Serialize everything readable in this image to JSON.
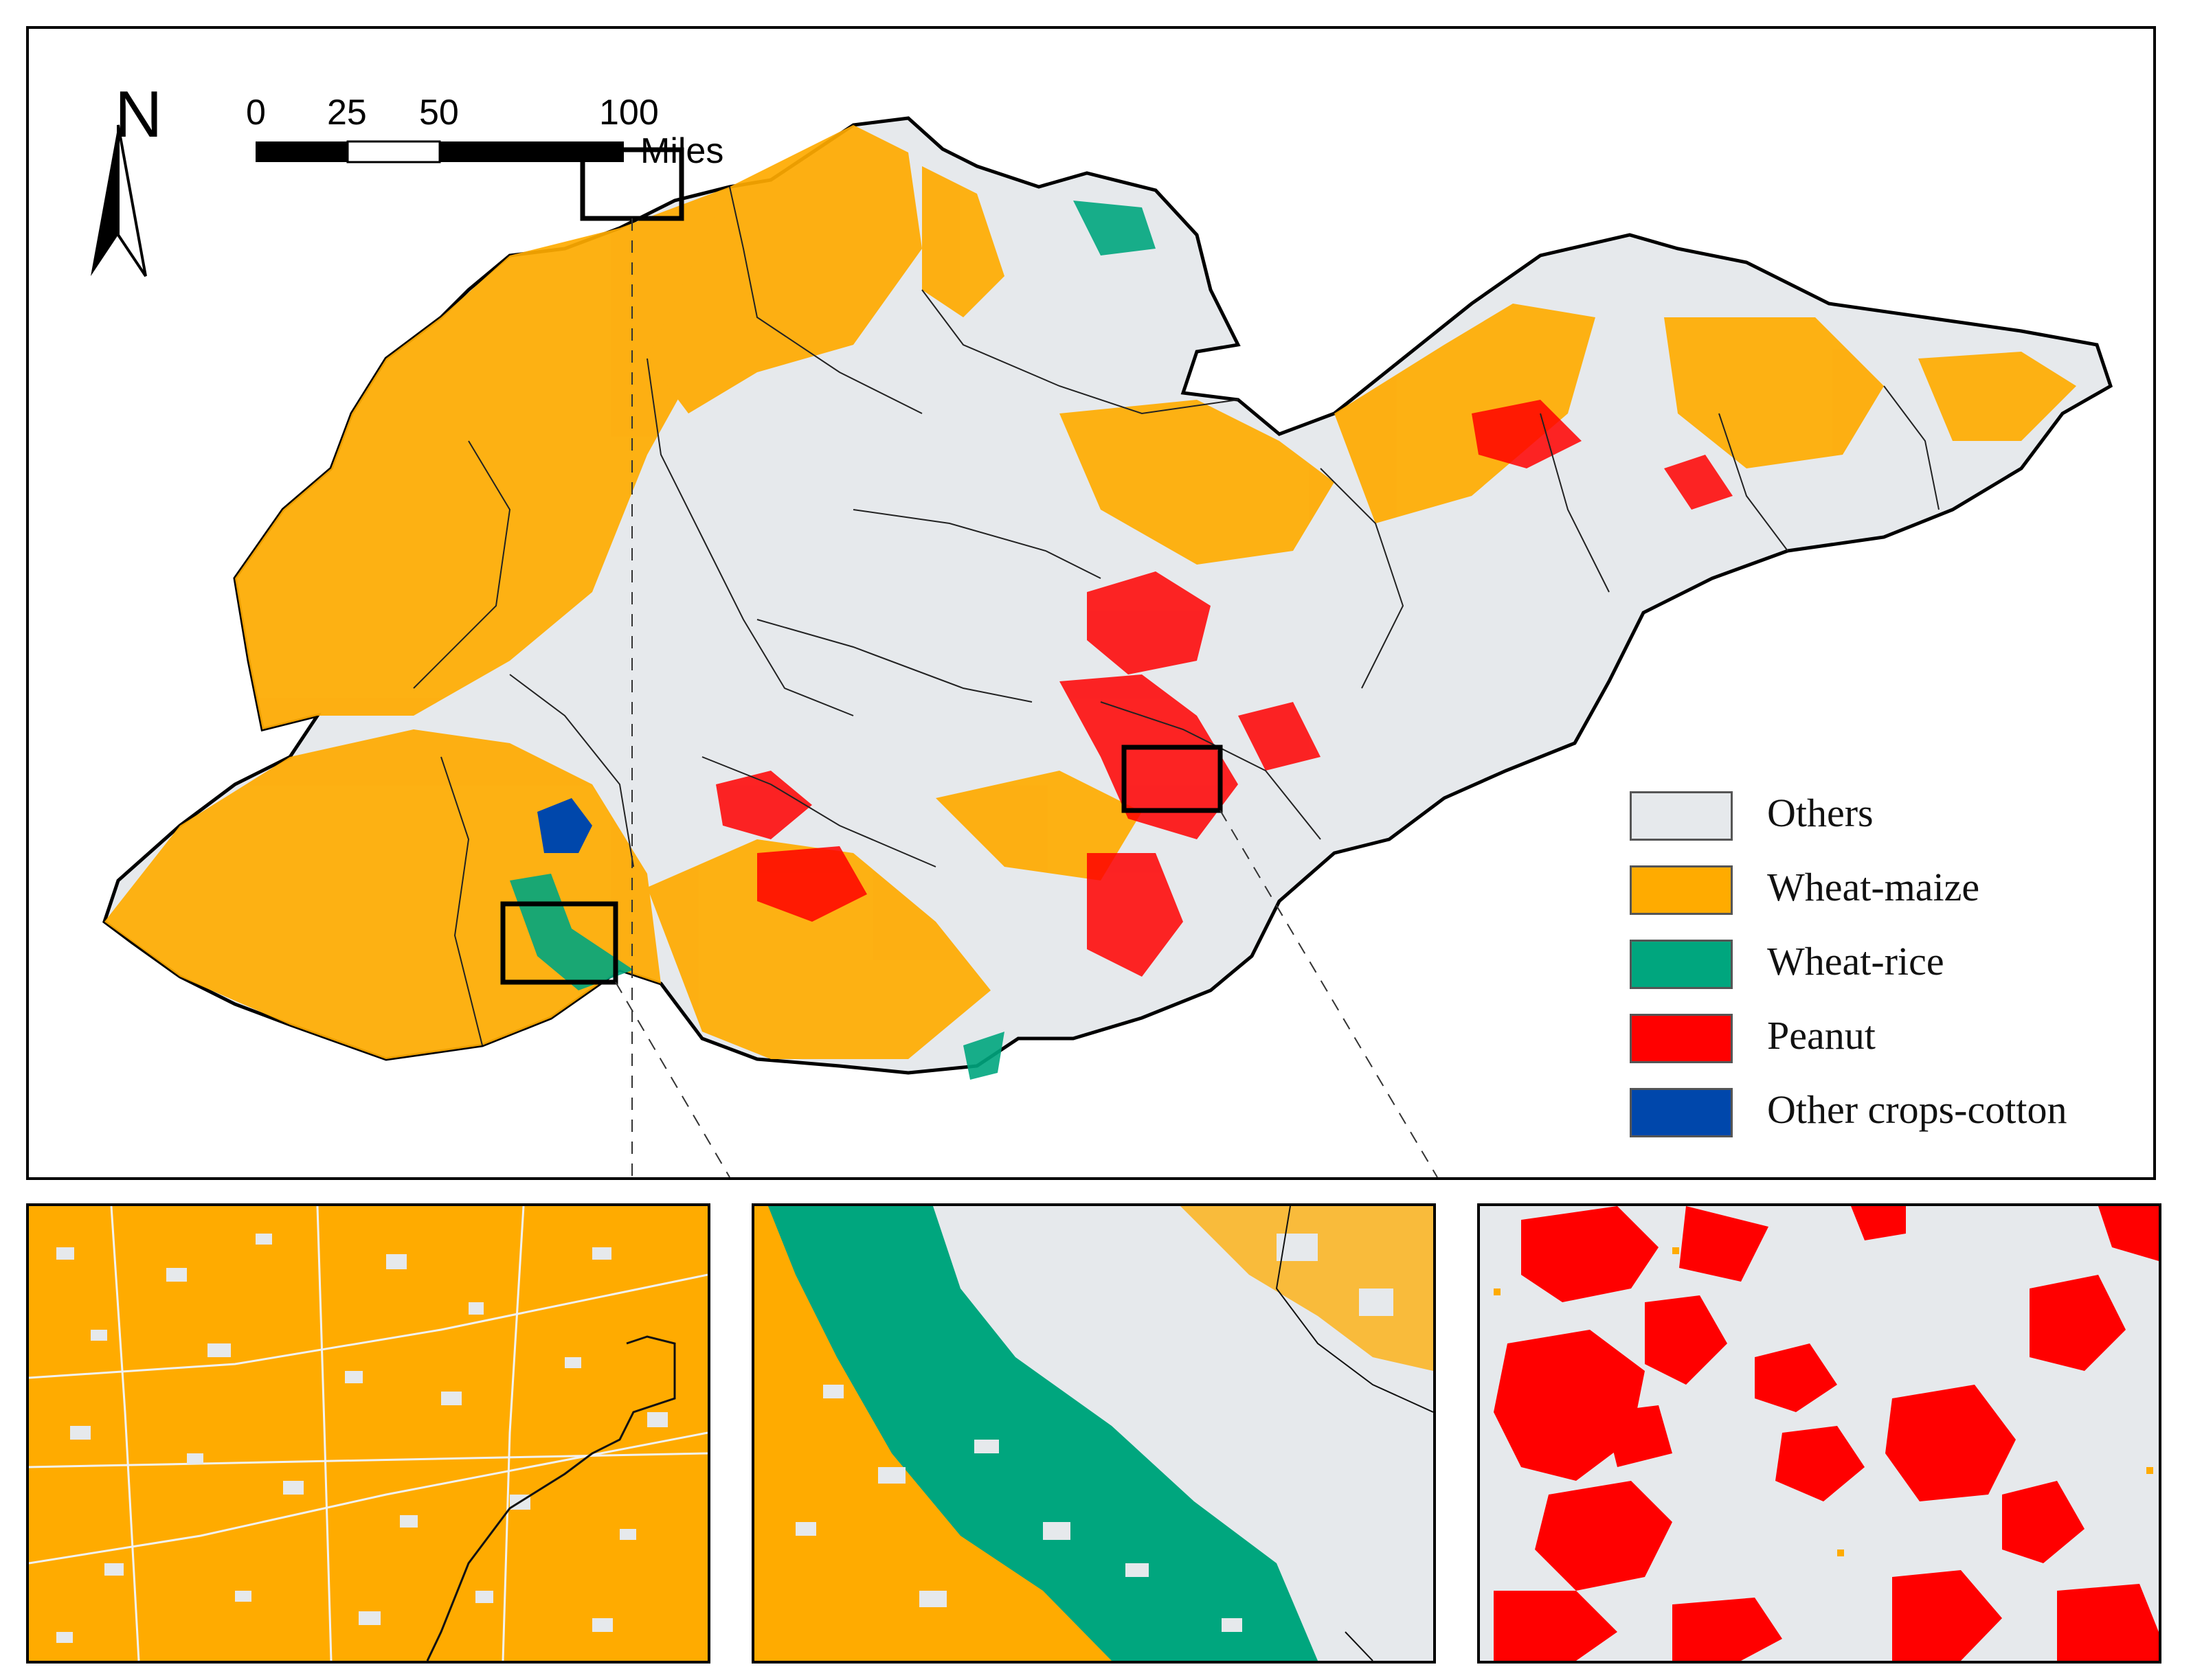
{
  "north": {
    "label": "N"
  },
  "scale_bar": {
    "ticks": [
      "0",
      "25",
      "50",
      "100"
    ],
    "unit": "Miles"
  },
  "legend": {
    "items": [
      {
        "label": "Others",
        "color": "#e6e9ec"
      },
      {
        "label": "Wheat-maize",
        "color": "#ffab00"
      },
      {
        "label": "Wheat-rice",
        "color": "#00a67e"
      },
      {
        "label": "Peanut",
        "color": "#ff0000"
      },
      {
        "label": "Other crops-cotton",
        "color": "#0047ab"
      }
    ]
  },
  "insets": [
    {
      "dominant": "Wheat-maize"
    },
    {
      "dominant": "Wheat-rice"
    },
    {
      "dominant": "Peanut"
    }
  ]
}
